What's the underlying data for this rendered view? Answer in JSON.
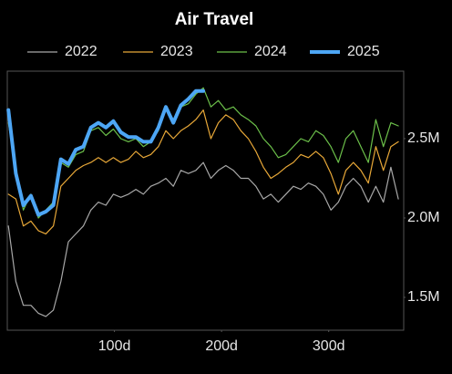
{
  "chart_data": {
    "type": "line",
    "title": "Air Travel",
    "x": [
      1,
      8,
      15,
      22,
      29,
      36,
      43,
      50,
      57,
      64,
      71,
      78,
      85,
      92,
      99,
      106,
      113,
      120,
      127,
      134,
      141,
      148,
      155,
      162,
      169,
      176,
      183,
      190,
      197,
      204,
      211,
      218,
      225,
      232,
      239,
      246,
      253,
      260,
      267,
      274,
      281,
      288,
      295,
      302,
      309,
      316,
      323,
      330,
      337,
      344,
      351,
      358,
      365
    ],
    "series": [
      {
        "name": "2022",
        "color": "#a8a8a8",
        "width": 1.2,
        "values": [
          1950000,
          1600000,
          1450000,
          1450000,
          1400000,
          1380000,
          1420000,
          1600000,
          1850000,
          1900000,
          1950000,
          2050000,
          2100000,
          2080000,
          2150000,
          2130000,
          2150000,
          2180000,
          2150000,
          2200000,
          2220000,
          2250000,
          2200000,
          2300000,
          2280000,
          2300000,
          2350000,
          2250000,
          2300000,
          2330000,
          2300000,
          2250000,
          2250000,
          2200000,
          2120000,
          2150000,
          2100000,
          2150000,
          2200000,
          2180000,
          2220000,
          2200000,
          2150000,
          2050000,
          2100000,
          2200000,
          2250000,
          2200000,
          2100000,
          2200000,
          2100000,
          2320000,
          2120000
        ]
      },
      {
        "name": "2023",
        "color": "#e8a838",
        "width": 1.2,
        "values": [
          2150000,
          2120000,
          1950000,
          1980000,
          1920000,
          1900000,
          1950000,
          2200000,
          2250000,
          2300000,
          2330000,
          2350000,
          2380000,
          2350000,
          2380000,
          2350000,
          2370000,
          2420000,
          2380000,
          2400000,
          2450000,
          2550000,
          2500000,
          2550000,
          2580000,
          2620000,
          2680000,
          2500000,
          2600000,
          2650000,
          2620000,
          2550000,
          2500000,
          2420000,
          2320000,
          2250000,
          2280000,
          2320000,
          2350000,
          2400000,
          2380000,
          2420000,
          2380000,
          2280000,
          2150000,
          2300000,
          2350000,
          2300000,
          2220000,
          2450000,
          2300000,
          2450000,
          2480000
        ]
      },
      {
        "name": "2024",
        "color": "#6cc04a",
        "width": 1.2,
        "values": [
          2600000,
          2300000,
          2050000,
          2150000,
          2000000,
          2050000,
          2100000,
          2350000,
          2320000,
          2400000,
          2420000,
          2550000,
          2570000,
          2520000,
          2560000,
          2500000,
          2480000,
          2500000,
          2450000,
          2480000,
          2550000,
          2700000,
          2600000,
          2700000,
          2720000,
          2780000,
          2820000,
          2700000,
          2740000,
          2680000,
          2700000,
          2650000,
          2620000,
          2580000,
          2500000,
          2450000,
          2380000,
          2400000,
          2450000,
          2500000,
          2480000,
          2550000,
          2520000,
          2450000,
          2350000,
          2500000,
          2550000,
          2450000,
          2350000,
          2620000,
          2450000,
          2600000,
          2580000
        ]
      },
      {
        "name": "2025",
        "color": "#4da6f5",
        "width": 4,
        "values": [
          2680000,
          2280000,
          2080000,
          2140000,
          2020000,
          2040000,
          2080000,
          2370000,
          2340000,
          2430000,
          2450000,
          2570000,
          2600000,
          2570000,
          2610000,
          2540000,
          2510000,
          2510000,
          2480000,
          2480000,
          2570000,
          2700000,
          2600000,
          2710000,
          2750000,
          2800000,
          2800000,
          null,
          null,
          null,
          null,
          null,
          null,
          null,
          null,
          null,
          null,
          null,
          null,
          null,
          null,
          null,
          null,
          null,
          null,
          null,
          null,
          null,
          null,
          null,
          null,
          null,
          null
        ]
      }
    ],
    "xlim": [
      0,
      370
    ],
    "xticks": [
      {
        "value": 100,
        "label": "100d"
      },
      {
        "value": 200,
        "label": "200d"
      },
      {
        "value": 300,
        "label": "300d"
      }
    ],
    "ylim": [
      1293000,
      2925000
    ],
    "yticks": [
      {
        "value": 1500000,
        "label": "1.5M"
      },
      {
        "value": 2000000,
        "label": "2.0M"
      },
      {
        "value": 2500000,
        "label": "2.5M"
      }
    ],
    "grid": false,
    "legend": "top"
  }
}
